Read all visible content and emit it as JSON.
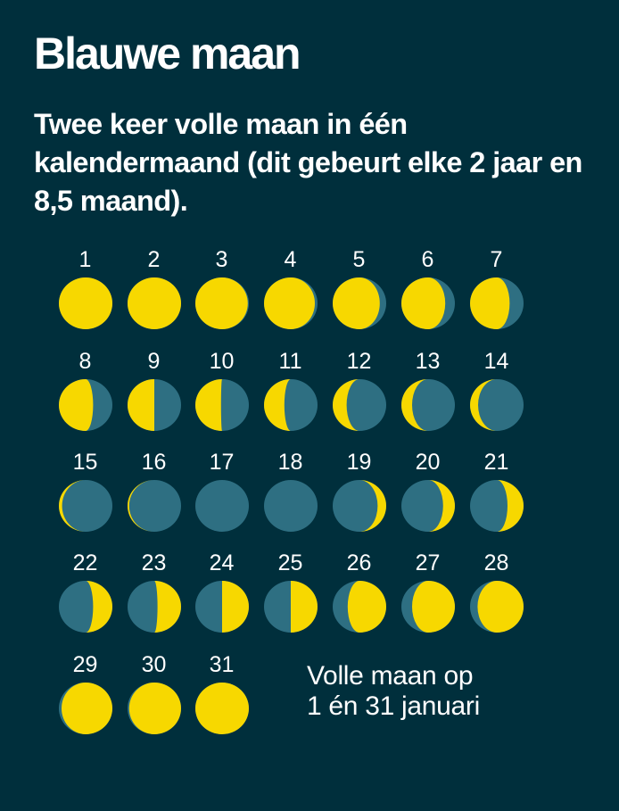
{
  "header": {
    "title": "Blauwe maan",
    "subtitle": "Twee keer volle maan in één kalendermaand (dit gebeurt elke 2 jaar en 8,5 maand)."
  },
  "colors": {
    "background": "#002f3c",
    "moon_lit": "#f7d800",
    "moon_dark": "#2e6f82",
    "text": "#ffffff"
  },
  "note": {
    "line1": "Volle maan op",
    "line2": "1 én 31 januari"
  },
  "chart_data": {
    "type": "diagram",
    "title": "Blauwe maan",
    "subtitle": "Twee keer volle maan in één kalendermaand (dit gebeurt elke 2 jaar en 8,5 maand).",
    "annotation": "Volle maan op 1 én 31 januari",
    "layout": {
      "columns": 7,
      "rows": 5
    },
    "days": [
      {
        "day": "1",
        "lit": 1.0,
        "side": "left"
      },
      {
        "day": "2",
        "lit": 1.0,
        "side": "left"
      },
      {
        "day": "3",
        "lit": 0.98,
        "side": "left"
      },
      {
        "day": "4",
        "lit": 0.95,
        "side": "left"
      },
      {
        "day": "5",
        "lit": 0.88,
        "side": "left"
      },
      {
        "day": "6",
        "lit": 0.82,
        "side": "left"
      },
      {
        "day": "7",
        "lit": 0.74,
        "side": "left"
      },
      {
        "day": "8",
        "lit": 0.64,
        "side": "left"
      },
      {
        "day": "9",
        "lit": 0.5,
        "side": "left"
      },
      {
        "day": "10",
        "lit": 0.48,
        "side": "left"
      },
      {
        "day": "11",
        "lit": 0.38,
        "side": "left"
      },
      {
        "day": "12",
        "lit": 0.26,
        "side": "left"
      },
      {
        "day": "13",
        "lit": 0.2,
        "side": "left"
      },
      {
        "day": "14",
        "lit": 0.15,
        "side": "left"
      },
      {
        "day": "15",
        "lit": 0.06,
        "side": "left"
      },
      {
        "day": "16",
        "lit": 0.03,
        "side": "left"
      },
      {
        "day": "17",
        "lit": 0.0,
        "side": "left"
      },
      {
        "day": "18",
        "lit": 0.0,
        "side": "right"
      },
      {
        "day": "19",
        "lit": 0.16,
        "side": "right"
      },
      {
        "day": "20",
        "lit": 0.22,
        "side": "right"
      },
      {
        "day": "21",
        "lit": 0.3,
        "side": "right"
      },
      {
        "day": "22",
        "lit": 0.36,
        "side": "right"
      },
      {
        "day": "23",
        "lit": 0.44,
        "side": "right"
      },
      {
        "day": "24",
        "lit": 0.5,
        "side": "right"
      },
      {
        "day": "25",
        "lit": 0.5,
        "side": "right"
      },
      {
        "day": "26",
        "lit": 0.72,
        "side": "right"
      },
      {
        "day": "27",
        "lit": 0.8,
        "side": "right"
      },
      {
        "day": "28",
        "lit": 0.86,
        "side": "right"
      },
      {
        "day": "29",
        "lit": 0.95,
        "side": "right"
      },
      {
        "day": "30",
        "lit": 0.97,
        "side": "right"
      },
      {
        "day": "31",
        "lit": 1.0,
        "side": "right"
      }
    ]
  }
}
